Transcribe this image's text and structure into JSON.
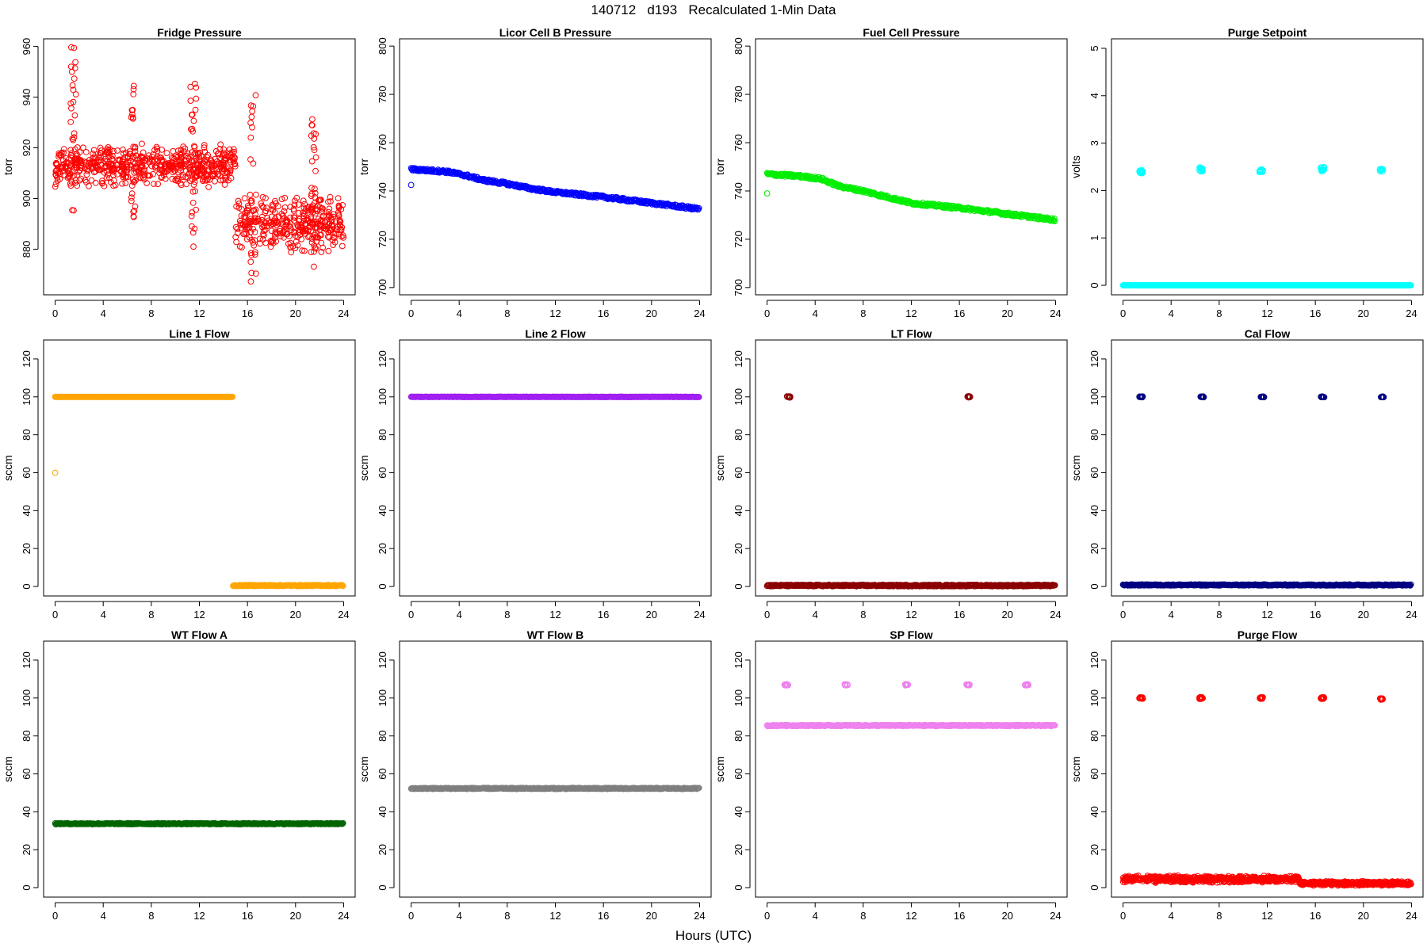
{
  "figure": {
    "title": "140712   d193   Recalculated 1-Min Data",
    "xlabel": "Hours (UTC)"
  },
  "chart_data": [
    {
      "type": "scatter",
      "title": "Fridge Pressure",
      "ylabel": "torr",
      "color": "#ff0000",
      "xlim": [
        -0.96,
        24.96
      ],
      "ylim": [
        862,
        963
      ],
      "xticks": [
        0,
        4,
        8,
        12,
        16,
        20,
        24
      ],
      "yticks": [
        880,
        900,
        920,
        940,
        960
      ],
      "series": [
        {
          "kind": "noise",
          "segments": [
            [
              0,
              15,
              904,
              922
            ],
            [
              15,
              24,
              878,
              902
            ]
          ]
        },
        {
          "kind": "spike",
          "x": 1.5,
          "range": [
            890,
            960
          ]
        },
        {
          "kind": "spike",
          "x": 6.5,
          "range": [
            892,
            946
          ]
        },
        {
          "kind": "spike",
          "x": 11.5,
          "range": [
            880,
            950
          ]
        },
        {
          "kind": "spike",
          "x": 16.5,
          "range": [
            866,
            941
          ]
        },
        {
          "kind": "spike",
          "x": 21.5,
          "range": [
            871,
            932
          ]
        }
      ]
    },
    {
      "type": "scatter",
      "title": "Licor Cell B Pressure",
      "ylabel": "torr",
      "color": "#0000ff",
      "xlim": [
        -0.96,
        24.96
      ],
      "ylim": [
        697,
        803
      ],
      "xticks": [
        0,
        4,
        8,
        12,
        16,
        20,
        24
      ],
      "yticks": [
        700,
        720,
        740,
        760,
        780,
        800
      ],
      "series": [
        {
          "kind": "trend",
          "points": [
            [
              0,
              749
            ],
            [
              3,
              748
            ],
            [
              4.5,
              746.5
            ],
            [
              6,
              744.5
            ],
            [
              8,
              743
            ],
            [
              10,
              741
            ],
            [
              12,
              739.5
            ],
            [
              16,
              737.5
            ],
            [
              20,
              735
            ],
            [
              24,
              732.5
            ]
          ],
          "jitter": 0.6
        },
        {
          "kind": "point",
          "x": 0,
          "y": 742.5
        }
      ]
    },
    {
      "type": "scatter",
      "title": "Fuel Cell Pressure",
      "ylabel": "torr",
      "color": "#00ee00",
      "xlim": [
        -0.96,
        24.96
      ],
      "ylim": [
        697,
        803
      ],
      "xticks": [
        0,
        4,
        8,
        12,
        16,
        20,
        24
      ],
      "yticks": [
        700,
        720,
        740,
        760,
        780,
        800
      ],
      "series": [
        {
          "kind": "trend",
          "points": [
            [
              0,
              747
            ],
            [
              3,
              746
            ],
            [
              4.5,
              745
            ],
            [
              6,
              742
            ],
            [
              8,
              740
            ],
            [
              10,
              737.5
            ],
            [
              12,
              735
            ],
            [
              16,
              733
            ],
            [
              20,
              730.5
            ],
            [
              24,
              728
            ]
          ],
          "jitter": 0.6
        },
        {
          "kind": "point",
          "x": 0,
          "y": 739
        }
      ]
    },
    {
      "type": "scatter",
      "title": "Purge Setpoint",
      "ylabel": "volts",
      "color": "#00ffff",
      "xlim": [
        -0.96,
        24.96
      ],
      "ylim": [
        -0.2,
        5.2
      ],
      "xticks": [
        0,
        4,
        8,
        12,
        16,
        20,
        24
      ],
      "yticks": [
        0,
        1,
        2,
        3,
        4,
        5
      ],
      "series": [
        {
          "kind": "flat",
          "y": 0,
          "from": 0,
          "to": 24,
          "jitter": 0
        },
        {
          "kind": "cluster",
          "x": 1.5,
          "y": 2.4,
          "jitter": 0.04
        },
        {
          "kind": "cluster",
          "x": 6.5,
          "y": 2.45,
          "jitter": 0.05
        },
        {
          "kind": "cluster",
          "x": 11.5,
          "y": 2.42,
          "jitter": 0.03
        },
        {
          "kind": "cluster",
          "x": 16.6,
          "y": 2.45,
          "jitter": 0.05
        },
        {
          "kind": "cluster",
          "x": 21.5,
          "y": 2.43,
          "jitter": 0.03
        }
      ]
    },
    {
      "type": "scatter",
      "title": "Line 1 Flow",
      "ylabel": "sccm",
      "color": "#ffa500",
      "xlim": [
        -0.96,
        24.96
      ],
      "ylim": [
        -5,
        130
      ],
      "xticks": [
        0,
        4,
        8,
        12,
        16,
        20,
        24
      ],
      "yticks": [
        0,
        20,
        40,
        60,
        80,
        100,
        120
      ],
      "series": [
        {
          "kind": "flat",
          "y": 100,
          "from": 0,
          "to": 14.8,
          "jitter": 0
        },
        {
          "kind": "flat",
          "y": 0.5,
          "from": 14.8,
          "to": 24,
          "jitter": 0.3
        },
        {
          "kind": "point",
          "x": 0,
          "y": 60
        }
      ]
    },
    {
      "type": "scatter",
      "title": "Line 2 Flow",
      "ylabel": "sccm",
      "color": "#a020f0",
      "xlim": [
        -0.96,
        24.96
      ],
      "ylim": [
        -5,
        130
      ],
      "xticks": [
        0,
        4,
        8,
        12,
        16,
        20,
        24
      ],
      "yticks": [
        0,
        20,
        40,
        60,
        80,
        100,
        120
      ],
      "series": [
        {
          "kind": "flat",
          "y": 100,
          "from": 0,
          "to": 24,
          "jitter": 0.1
        }
      ]
    },
    {
      "type": "scatter",
      "title": "LT Flow",
      "ylabel": "sccm",
      "color": "#8b0000",
      "xlim": [
        -0.96,
        24.96
      ],
      "ylim": [
        -5,
        130
      ],
      "xticks": [
        0,
        4,
        8,
        12,
        16,
        20,
        24
      ],
      "yticks": [
        0,
        20,
        40,
        60,
        80,
        100,
        120
      ],
      "series": [
        {
          "kind": "flat",
          "y": 0.5,
          "from": 0,
          "to": 24,
          "jitter": 0.4
        },
        {
          "kind": "cluster",
          "x": 1.8,
          "y": 100,
          "jitter": 0.3
        },
        {
          "kind": "cluster",
          "x": 16.8,
          "y": 100,
          "jitter": 0.3
        }
      ]
    },
    {
      "type": "scatter",
      "title": "Cal Flow",
      "ylabel": "sccm",
      "color": "#000080",
      "xlim": [
        -0.96,
        24.96
      ],
      "ylim": [
        -5,
        130
      ],
      "xticks": [
        0,
        4,
        8,
        12,
        16,
        20,
        24
      ],
      "yticks": [
        0,
        20,
        40,
        60,
        80,
        100,
        120
      ],
      "series": [
        {
          "kind": "flat",
          "y": 0.8,
          "from": 0,
          "to": 24,
          "jitter": 0.3
        },
        {
          "kind": "cluster",
          "x": 1.5,
          "y": 100,
          "jitter": 0.2
        },
        {
          "kind": "cluster",
          "x": 6.6,
          "y": 100,
          "jitter": 0.2
        },
        {
          "kind": "cluster",
          "x": 11.6,
          "y": 100,
          "jitter": 0.2
        },
        {
          "kind": "cluster",
          "x": 16.6,
          "y": 100,
          "jitter": 0.2
        },
        {
          "kind": "cluster",
          "x": 21.6,
          "y": 100,
          "jitter": 0.2
        }
      ]
    },
    {
      "type": "scatter",
      "title": "WT Flow A",
      "ylabel": "sccm",
      "color": "#006400",
      "xlim": [
        -0.96,
        24.96
      ],
      "ylim": [
        -5,
        130
      ],
      "xticks": [
        0,
        4,
        8,
        12,
        16,
        20,
        24
      ],
      "yticks": [
        0,
        20,
        40,
        60,
        80,
        100,
        120
      ],
      "series": [
        {
          "kind": "flat",
          "y": 33.7,
          "from": 0,
          "to": 24,
          "jitter": 0.3
        }
      ]
    },
    {
      "type": "scatter",
      "title": "WT Flow B",
      "ylabel": "sccm",
      "color": "#7f7f7f",
      "xlim": [
        -0.96,
        24.96
      ],
      "ylim": [
        -5,
        130
      ],
      "xticks": [
        0,
        4,
        8,
        12,
        16,
        20,
        24
      ],
      "yticks": [
        0,
        20,
        40,
        60,
        80,
        100,
        120
      ],
      "series": [
        {
          "kind": "flat",
          "y": 52.3,
          "from": 0,
          "to": 24,
          "jitter": 0.3
        }
      ]
    },
    {
      "type": "scatter",
      "title": "SP Flow",
      "ylabel": "sccm",
      "color": "#ee82ee",
      "xlim": [
        -0.96,
        24.96
      ],
      "ylim": [
        -5,
        130
      ],
      "xticks": [
        0,
        4,
        8,
        12,
        16,
        20,
        24
      ],
      "yticks": [
        0,
        20,
        40,
        60,
        80,
        100,
        120
      ],
      "series": [
        {
          "kind": "flat",
          "y": 85.5,
          "from": 0,
          "to": 24,
          "jitter": 0.3
        },
        {
          "kind": "cluster",
          "x": 1.6,
          "y": 107,
          "jitter": 0.3
        },
        {
          "kind": "cluster",
          "x": 6.6,
          "y": 107,
          "jitter": 0.3
        },
        {
          "kind": "cluster",
          "x": 11.6,
          "y": 107,
          "jitter": 0.3
        },
        {
          "kind": "cluster",
          "x": 16.7,
          "y": 107,
          "jitter": 0.3
        },
        {
          "kind": "cluster",
          "x": 21.6,
          "y": 107,
          "jitter": 0.3
        }
      ]
    },
    {
      "type": "scatter",
      "title": "Purge Flow",
      "ylabel": "sccm",
      "color": "#ff0000",
      "xlim": [
        -0.96,
        24.96
      ],
      "ylim": [
        -5,
        130
      ],
      "xticks": [
        0,
        4,
        8,
        12,
        16,
        20,
        24
      ],
      "yticks": [
        0,
        20,
        40,
        60,
        80,
        100,
        120
      ],
      "series": [
        {
          "kind": "noise",
          "segments": [
            [
              0,
              14.7,
              2.5,
              6.5
            ],
            [
              14.7,
              24,
              1,
              3.5
            ]
          ]
        },
        {
          "kind": "cluster",
          "x": 1.5,
          "y": 100,
          "jitter": 0.4
        },
        {
          "kind": "cluster",
          "x": 6.5,
          "y": 100,
          "jitter": 0.5
        },
        {
          "kind": "cluster",
          "x": 11.5,
          "y": 100,
          "jitter": 0.4
        },
        {
          "kind": "cluster",
          "x": 16.6,
          "y": 100,
          "jitter": 0.5
        },
        {
          "kind": "cluster",
          "x": 21.5,
          "y": 99.5,
          "jitter": 0.4
        }
      ]
    }
  ]
}
